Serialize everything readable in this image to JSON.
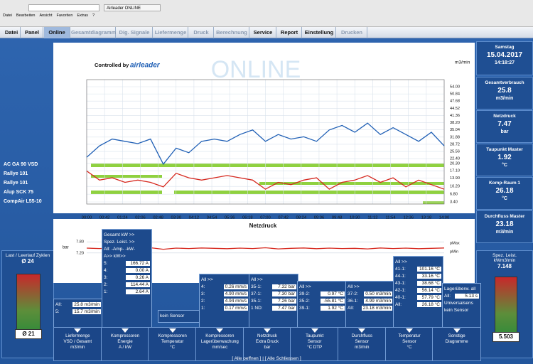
{
  "browser": {
    "tab": "Airleader ONLINE",
    "toolbar": [
      "Datei",
      "Bearbeiten",
      "Ansicht",
      "Favoriten",
      "Extras",
      "?"
    ]
  },
  "menu": [
    "Datei",
    "Panel",
    "Online",
    "Gesamtdiagramm",
    "Dig. Signale",
    "Liefermenge",
    "Druck",
    "Berechnung",
    "Service",
    "Report",
    "Einstellung",
    "Drucken"
  ],
  "compressors": [
    "AC GA 90 VSD",
    "Rallye 101",
    "Rallye 101",
    "Alup SCK 75",
    "CompAir L55-10"
  ],
  "chart_data": [
    {
      "type": "line",
      "watermark": "ONLINE",
      "brand": [
        "Controlled by",
        "airleader"
      ],
      "y_label": "m3/min",
      "xlim": [
        0,
        14
      ],
      "xticks": [
        {
          "value": 0,
          "label": "00:00"
        },
        {
          "value": 0.7,
          "label": "00:42"
        },
        {
          "value": 1.4,
          "label": "01:24"
        },
        {
          "value": 2.1,
          "label": "02:06"
        },
        {
          "value": 2.8,
          "label": "02:48"
        },
        {
          "value": 3.5,
          "label": "03:30"
        },
        {
          "value": 4.2,
          "label": "04:12"
        },
        {
          "value": 4.9,
          "label": "04:54"
        },
        {
          "value": 5.6,
          "label": "05:36"
        },
        {
          "value": 6.3,
          "label": "06:18"
        },
        {
          "value": 7,
          "label": "07:00"
        },
        {
          "value": 7.7,
          "label": "07:42"
        },
        {
          "value": 8.4,
          "label": "08:24"
        },
        {
          "value": 9.1,
          "label": "09:06"
        },
        {
          "value": 9.8,
          "label": "09:48"
        },
        {
          "value": 10.5,
          "label": "10:30"
        },
        {
          "value": 11.2,
          "label": "11:12"
        },
        {
          "value": 11.9,
          "label": "11:54"
        },
        {
          "value": 12.6,
          "label": "12:36"
        },
        {
          "value": 13.3,
          "label": "13:18"
        },
        {
          "value": 14,
          "label": "14:00"
        }
      ],
      "ylim": [
        3.4,
        54
      ],
      "yticks": [
        {
          "value": 54,
          "label": "54.00"
        },
        {
          "value": 50.84,
          "label": "50.84"
        },
        {
          "value": 47.68,
          "label": "47.68"
        },
        {
          "value": 44.52,
          "label": "44.52"
        },
        {
          "value": 41.36,
          "label": "41.36"
        },
        {
          "value": 38.2,
          "label": "38.20"
        },
        {
          "value": 35.04,
          "label": "35.04"
        },
        {
          "value": 31.88,
          "label": "31.88"
        },
        {
          "value": 28.72,
          "label": "28.72"
        },
        {
          "value": 25.56,
          "label": "25.56"
        },
        {
          "value": 22.4,
          "label": "22.40"
        },
        {
          "value": 20.3,
          "label": "20.30"
        },
        {
          "value": 17.1,
          "label": "17.10"
        },
        {
          "value": 13.9,
          "label": "13.90"
        },
        {
          "value": 10.2,
          "label": "10.20"
        },
        {
          "value": 6.8,
          "label": "6.80"
        },
        {
          "value": 3.4,
          "label": "3.40"
        }
      ],
      "grid": true,
      "series": [
        {
          "color": "#1f5fb5",
          "x": [
            0,
            0.5,
            1,
            1.5,
            2,
            2.5,
            3,
            3.5,
            4,
            4.5,
            5,
            5.5,
            6,
            6.5,
            7,
            7.5,
            8,
            8.5,
            9,
            9.5,
            10,
            10.5,
            11,
            11.5,
            12,
            12.5,
            13,
            13.5,
            14
          ],
          "values": [
            23,
            28,
            31,
            30,
            29,
            31,
            20,
            27,
            25,
            30,
            31,
            30,
            33,
            35,
            30,
            33,
            31,
            32,
            30,
            35,
            37,
            34,
            38,
            33,
            36,
            33,
            30,
            34,
            28
          ]
        },
        {
          "color": "#d6281e",
          "x": [
            0,
            0.5,
            1,
            1.5,
            2,
            2.5,
            3,
            3.5,
            4,
            4.5,
            5,
            5.5,
            6,
            6.5,
            7,
            7.5,
            8,
            8.5,
            9,
            9.5,
            10,
            10.5,
            11,
            11.5,
            12,
            12.5,
            13,
            13.5,
            14
          ],
          "values": [
            17,
            13,
            14,
            12,
            13,
            12,
            10,
            16,
            14,
            13,
            14,
            15,
            14,
            13,
            9,
            12,
            11,
            13,
            14,
            9,
            12,
            13,
            15,
            12,
            14,
            10,
            13,
            11,
            9
          ]
        }
      ]
    },
    {
      "type": "line",
      "title": "Netzdruck",
      "y_label": "bar",
      "legend": [
        "pMax",
        "pMin"
      ],
      "xlim": [
        0,
        14
      ],
      "ylim": [
        7,
        8
      ],
      "yticks": [
        {
          "value": 7.8,
          "label": "7.80"
        },
        {
          "value": 7.2,
          "label": "7.20"
        }
      ],
      "series": [
        {
          "color": "#d6281e",
          "x": [
            0,
            0.5,
            1,
            1.5,
            2,
            2.5,
            3,
            3.5,
            4,
            4.5,
            5,
            5.5,
            6,
            6.5,
            7,
            7.5,
            8,
            8.5,
            9,
            9.5,
            10,
            10.5,
            11,
            11.5,
            12,
            12.5,
            13,
            13.5,
            14
          ],
          "values": [
            7.46,
            7.44,
            7.47,
            7.42,
            7.45,
            7.48,
            7.4,
            7.46,
            7.44,
            7.47,
            7.45,
            7.43,
            7.46,
            7.44,
            7.48,
            7.42,
            7.45,
            7.47,
            7.43,
            7.46,
            7.44,
            7.45,
            7.42,
            7.47,
            7.44,
            7.46,
            7.43,
            7.45,
            7.47
          ]
        }
      ]
    }
  ],
  "right_panels": [
    {
      "title": "Samstag",
      "lines": [
        "15.04.2017",
        "14:18:27"
      ]
    },
    {
      "title": "Gesamtverbrauch",
      "lines": [
        "25.8",
        "m3/min"
      ]
    },
    {
      "title": "Netzdruck",
      "lines": [
        "7.47",
        "bar"
      ]
    },
    {
      "title": "Taupunkt Master",
      "lines": [
        "1.92",
        "°C"
      ]
    },
    {
      "title": "Komp-Raum 1",
      "lines": [
        "26.18",
        "°C"
      ]
    },
    {
      "title": "Durchfluss Master",
      "lines": [
        "23.18",
        "m3/min"
      ]
    }
  ],
  "right_gauge": {
    "title": "Spez. Leist. kWm3/min",
    "value": "7.148",
    "reading": "5.503"
  },
  "left_gauge": {
    "title": "Last / Leerlauf Zyklen",
    "top": "Ø 24",
    "bottom": "Ø 21"
  },
  "popups": [
    {
      "rows": [
        [
          "All:",
          "25.8 m3/min"
        ],
        [
          "5:",
          "15.7 m3/min"
        ]
      ]
    },
    {
      "rows": [
        [
          "Gesamt kW >>",
          ""
        ],
        [
          "Spez. Leist. >>",
          ""
        ],
        [
          "All: -Amp- -kW-",
          ""
        ],
        [
          "A>> kW>>",
          ""
        ],
        [
          "5:",
          "166.72 A"
        ],
        [
          "4:",
          "0.00 A"
        ],
        [
          "3:",
          "0.26 A"
        ],
        [
          "2:",
          "114.44 A"
        ],
        [
          "1:",
          "2.64 A"
        ]
      ]
    },
    {
      "rows": [
        [
          "kein Sensor",
          ""
        ]
      ]
    },
    {
      "rows": [
        [
          "All >>",
          ""
        ],
        [
          "4:",
          "0.26 mm/s"
        ],
        [
          "3:",
          "4.90 mm/s"
        ],
        [
          "2:",
          "4.94 mm/s"
        ],
        [
          "1:",
          "0.17 mm/s"
        ]
      ]
    },
    {
      "rows": [
        [
          "All >>",
          ""
        ],
        [
          "35-1:",
          "7.32 bar"
        ],
        [
          "37-1:",
          "7.30 bar"
        ],
        [
          "35-1:",
          "7.26 bar"
        ],
        [
          "1 ND:",
          "7.47 bar"
        ]
      ]
    },
    {
      "rows": [
        [
          "All >>",
          ""
        ],
        [
          "39-2:",
          "0.97 °C"
        ],
        [
          "35-2:",
          "-55.81 °C"
        ],
        [
          "39-1:",
          "1.92 °C"
        ]
      ]
    },
    {
      "rows": [
        [
          "All >>",
          ""
        ],
        [
          "37-2:",
          "0.50 m3/min"
        ],
        [
          "36-1:",
          "4.99 m3/min"
        ],
        [
          "All:",
          "23.18 m3/min"
        ]
      ]
    },
    {
      "rows": [
        [
          "All >>",
          ""
        ],
        [
          "41-1:",
          "101.16 °C"
        ],
        [
          "44-1:",
          "33.16 °C"
        ],
        [
          "43-1:",
          "38.68 °C"
        ],
        [
          "42-1:",
          "56.14 °C"
        ],
        [
          "40-1:",
          "57.79 °C"
        ],
        [
          "All:",
          "26.18 °C"
        ]
      ]
    },
    {
      "rows": [
        [
          "Lagerüberw. all",
          ""
        ],
        [
          "All:",
          "5.13 s"
        ],
        [
          "Universalsens",
          ""
        ],
        [
          "kein Sensor",
          ""
        ]
      ]
    }
  ],
  "buttons": [
    [
      "Liefermenge",
      "VSD / Gesamt",
      "m3/min"
    ],
    [
      "Kompressoren",
      "Energie",
      "A / kW"
    ],
    [
      "Kompressoren",
      "Temperatur",
      "°C"
    ],
    [
      "Kompressoren",
      "Lagerüberwachung",
      "mm/sec"
    ],
    [
      "Netzdruck",
      "Extra Druck",
      "bar"
    ],
    [
      "Taupunkt",
      "Sensor",
      "°C DTP"
    ],
    [
      "Durchfluss",
      "Sensor",
      "m3/min"
    ],
    [
      "Temperatur",
      "Sensor",
      "°C"
    ],
    [
      "Sonstige",
      "Diagramme",
      ""
    ]
  ],
  "footer": "[ Alle oeffnen ] | [ Alle Schliessen ]"
}
